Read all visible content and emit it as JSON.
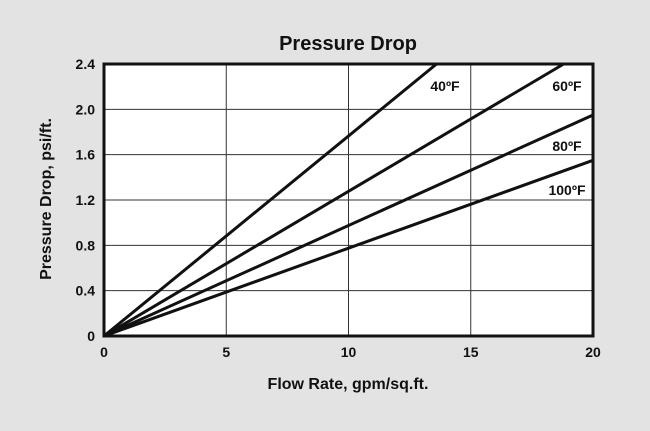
{
  "chart_data": {
    "type": "line",
    "title": "Pressure Drop",
    "xlabel": "Flow Rate, gpm/sq.ft.",
    "ylabel": "Pressure Drop, psi/ft.",
    "xlim": [
      0,
      20
    ],
    "ylim": [
      0,
      2.4
    ],
    "xticks": [
      "0",
      "5",
      "10",
      "15",
      "20"
    ],
    "yticks": [
      "0",
      "0.4",
      "0.8",
      "1.2",
      "1.6",
      "2.0",
      "2.4"
    ],
    "grid": true,
    "series": [
      {
        "name": "40ºF",
        "x": [
          0,
          13.6
        ],
        "y": [
          0,
          2.4
        ]
      },
      {
        "name": "60ºF",
        "x": [
          0,
          18.8
        ],
        "y": [
          0,
          2.4
        ]
      },
      {
        "name": "80ºF",
        "x": [
          0,
          20
        ],
        "y": [
          0,
          1.95
        ]
      },
      {
        "name": "100ºF",
        "x": [
          0,
          20
        ],
        "y": [
          0,
          1.55
        ]
      }
    ],
    "colors": {
      "background": "#e3e3e3",
      "plot": "#ffffff",
      "line": "#111111"
    }
  }
}
